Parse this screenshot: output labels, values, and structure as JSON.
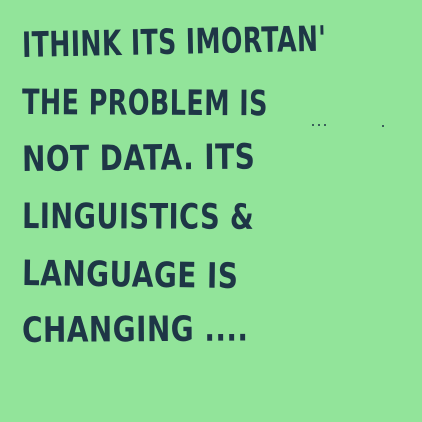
{
  "note": {
    "background_color": "#92e49a",
    "ink_color": "#1e3646",
    "lines": [
      "ITHINK ITS IMORTAN'",
      "THE PROBLEM IS",
      "NOT DATA. ITS",
      "LINGUISTICS &",
      "LANGUAGE IS",
      "CHANGING ...."
    ]
  }
}
